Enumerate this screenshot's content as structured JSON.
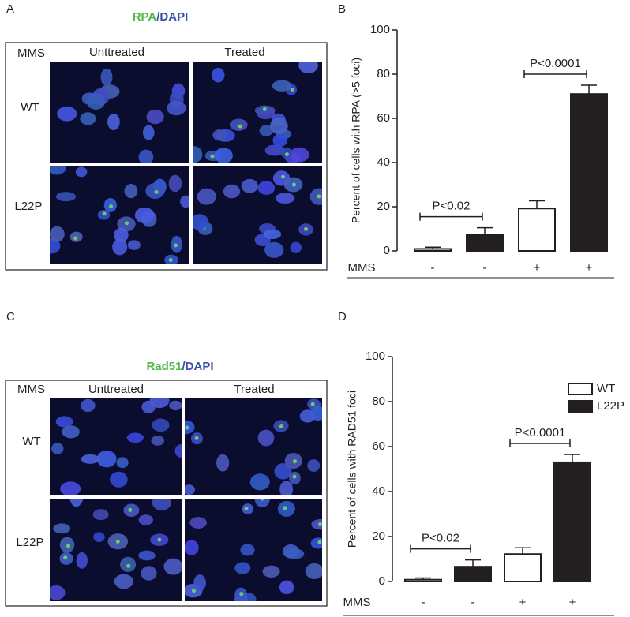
{
  "panel_labels": [
    "A",
    "B",
    "C",
    "D"
  ],
  "panel_a": {
    "title_stain": "RPA",
    "title_dapi": "/DAPI",
    "mms": "MMS",
    "columns": [
      "Unttreated",
      "Treated"
    ],
    "rows": [
      "WT",
      "L22P"
    ]
  },
  "panel_c": {
    "title_stain": "Rad51",
    "title_dapi": "/DAPI",
    "mms": "MMS",
    "columns": [
      "Unttreated",
      "Treated"
    ],
    "rows": [
      "WT",
      "L22P"
    ]
  },
  "chart_data": [
    {
      "type": "bar",
      "ylabel": "Percent of  cells with RPA  (>5 foci)",
      "x_label": "MMS",
      "categories": [
        "-",
        "-",
        "+",
        "+"
      ],
      "ylim": [
        0,
        100
      ],
      "yticks": [
        0,
        20,
        40,
        60,
        80,
        100
      ],
      "series": [
        {
          "color": "#ffffff",
          "values": [
            0.9,
            null,
            19.2,
            null
          ],
          "errors": [
            0.8,
            null,
            3.5,
            null
          ]
        },
        {
          "color": "#231f20",
          "values": [
            null,
            7.3,
            null,
            71
          ],
          "errors": [
            null,
            3.2,
            null,
            4
          ]
        }
      ],
      "annotations": [
        "P<0.02",
        "P<0.0001"
      ]
    },
    {
      "type": "bar",
      "ylabel": "Percent of cells with  RAD51  foci",
      "x_label": "MMS",
      "categories": [
        "-",
        "-",
        "+",
        "+"
      ],
      "ylim": [
        0,
        100
      ],
      "yticks": [
        0,
        20,
        40,
        60,
        80,
        100
      ],
      "legend": "upper right",
      "series": [
        {
          "name": "WT",
          "color": "#ffffff",
          "values": [
            0.8,
            null,
            12.2,
            null
          ],
          "errors": [
            0.8,
            null,
            2.8,
            null
          ]
        },
        {
          "name": "L22P",
          "color": "#231f20",
          "values": [
            null,
            6.6,
            null,
            53
          ],
          "errors": [
            null,
            3,
            null,
            3.5
          ]
        }
      ],
      "annotations": [
        "P<0.02",
        "P<0.0001"
      ]
    }
  ]
}
